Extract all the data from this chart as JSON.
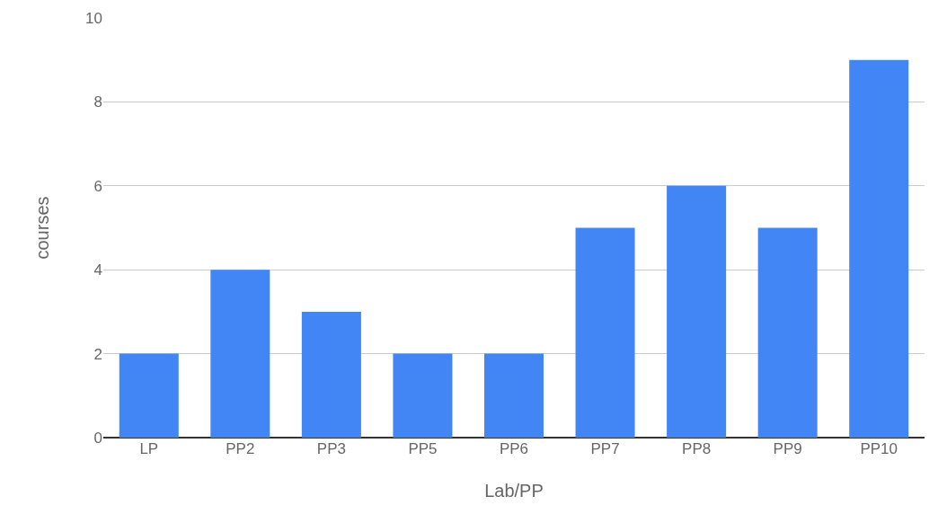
{
  "chart_data": {
    "type": "bar",
    "xlabel": "Lab/PP",
    "ylabel": "courses",
    "categories": [
      "LP",
      "PP2",
      "PP3",
      "PP5",
      "PP6",
      "PP7",
      "PP8",
      "PP9",
      "PP10"
    ],
    "values": [
      2,
      4,
      3,
      2,
      2,
      5,
      6,
      5,
      9
    ],
    "color": "#4285f4",
    "ylim": [
      0,
      10
    ],
    "yticks": [
      0,
      2,
      4,
      6,
      8,
      10
    ],
    "grid": "y",
    "legend": false
  }
}
